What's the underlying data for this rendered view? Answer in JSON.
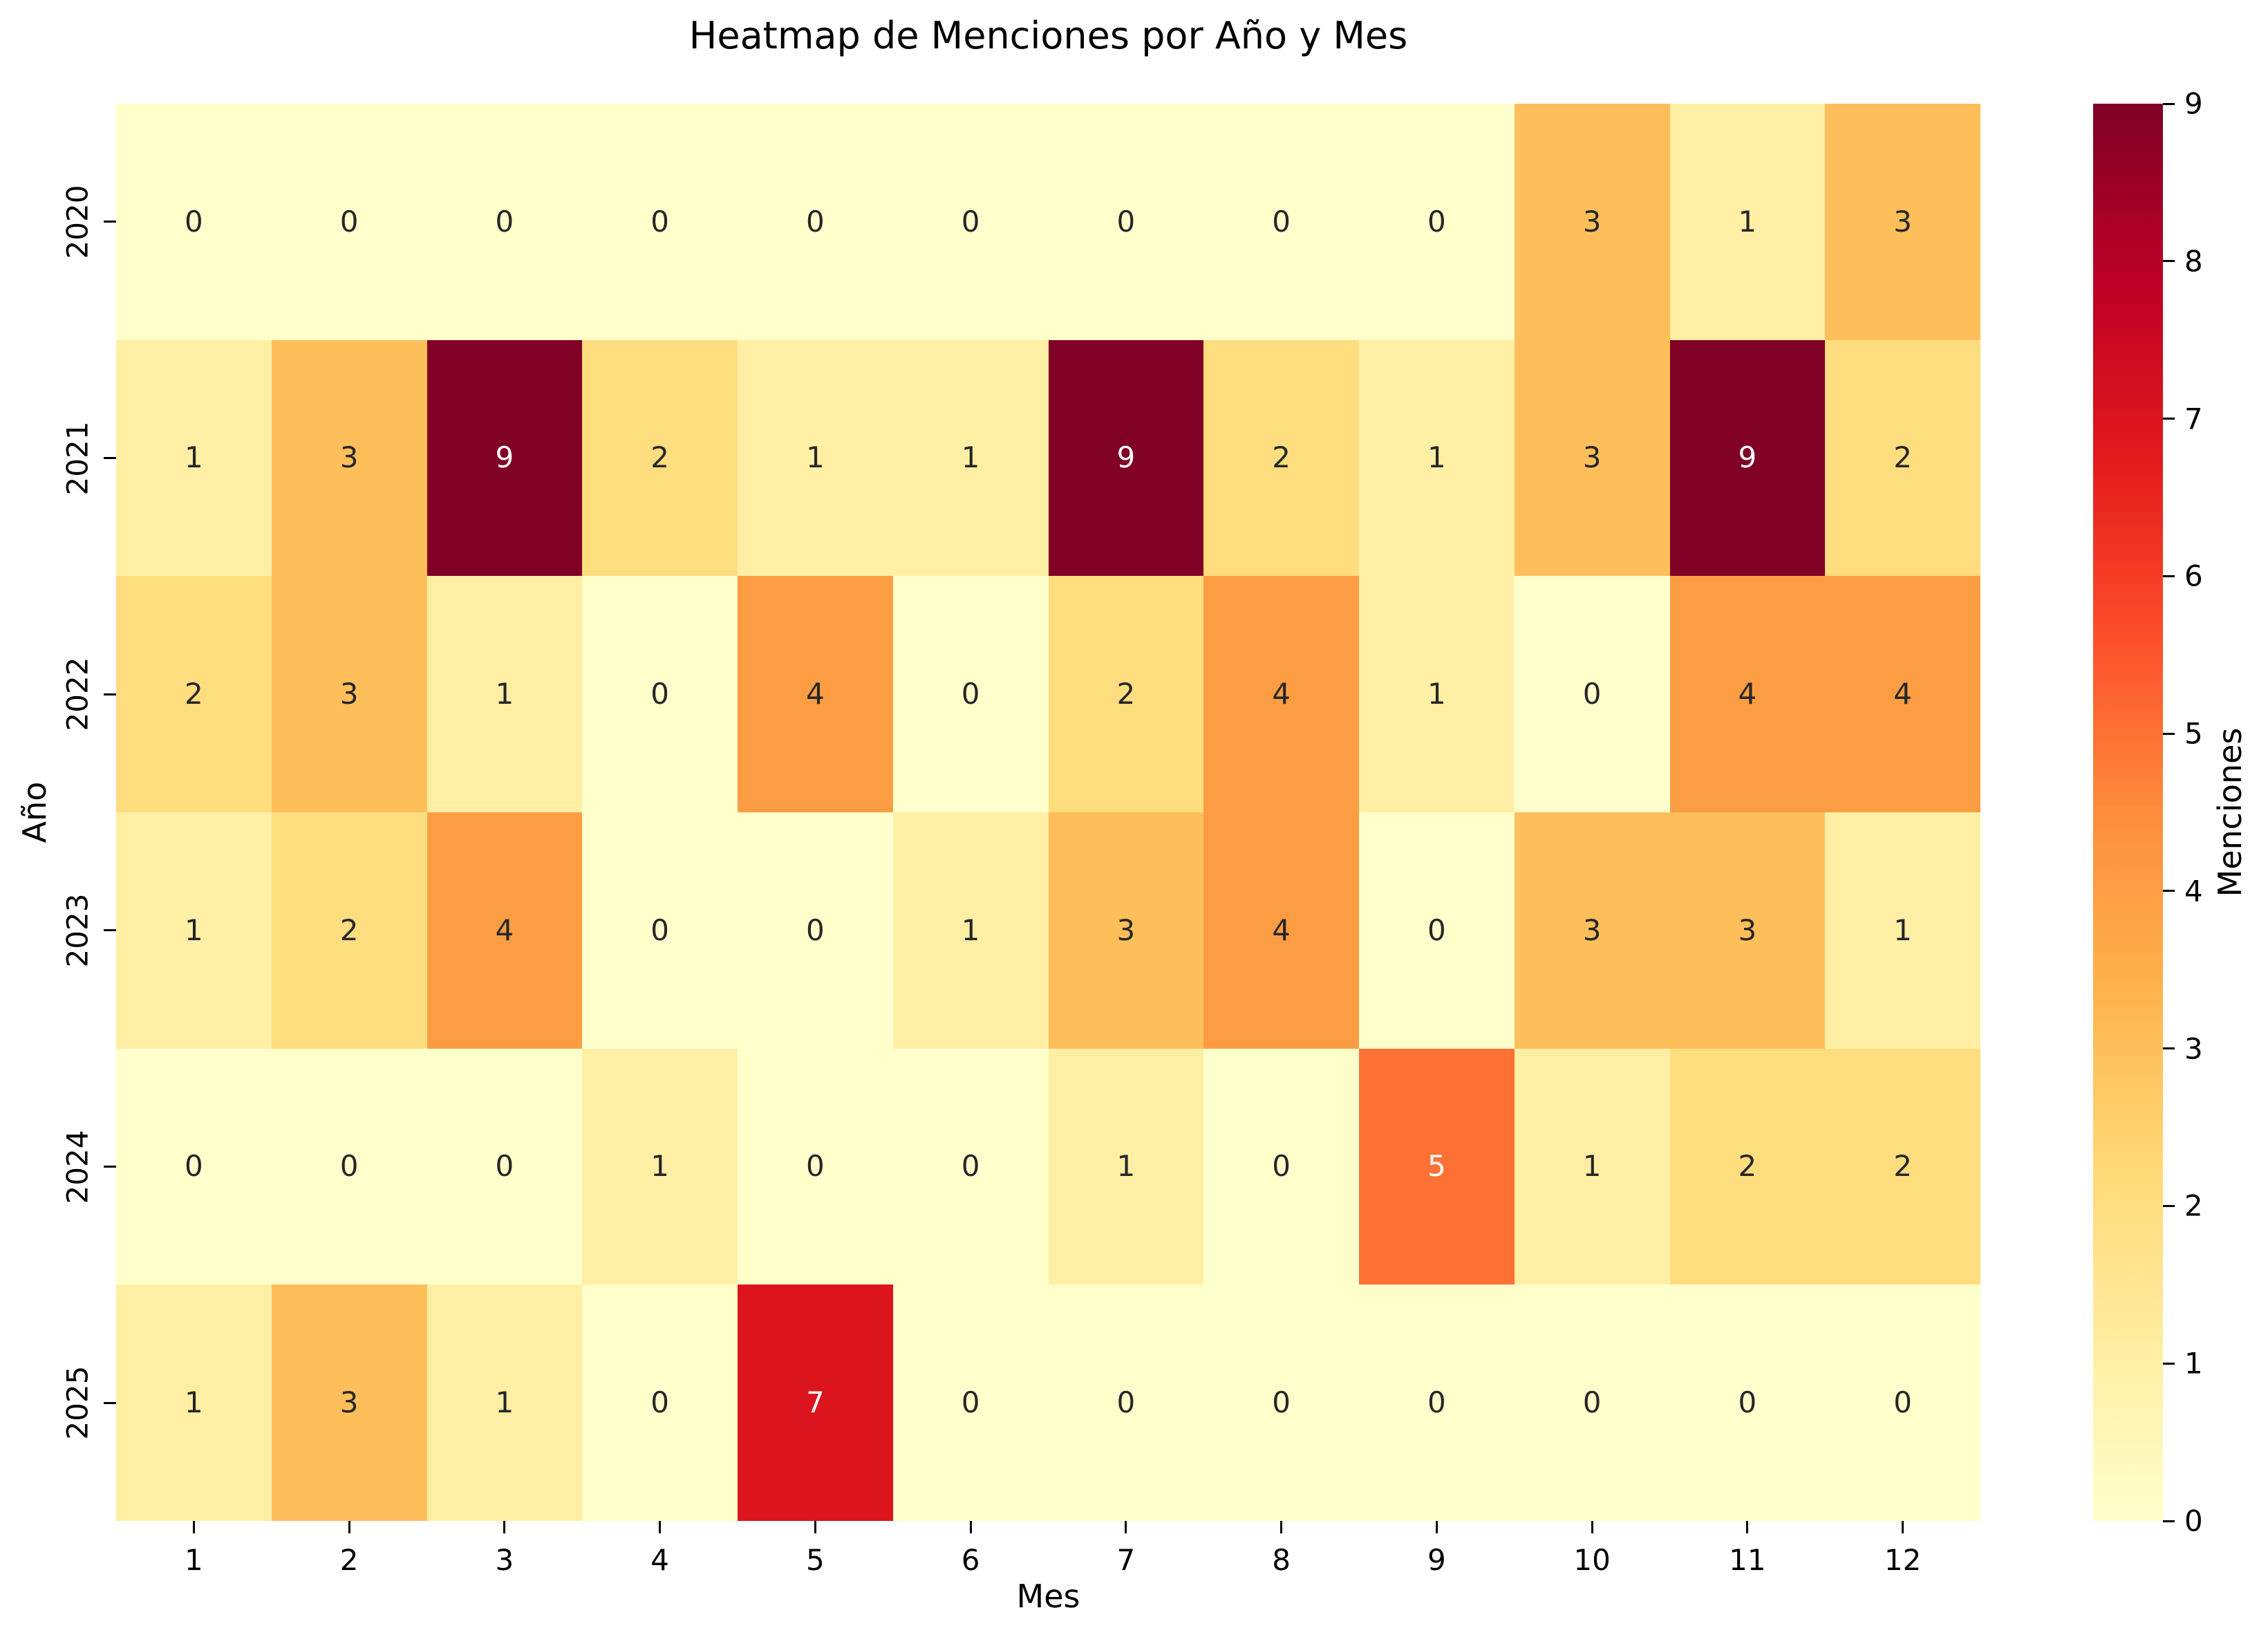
{
  "chart_data": {
    "type": "heatmap",
    "title": "Heatmap de Menciones por Año y Mes",
    "xlabel": "Mes",
    "ylabel": "Año",
    "colorbar_label": "Menciones",
    "colormap": "YlOrRd",
    "vmin": 0,
    "vmax": 9,
    "x_ticks": [
      "1",
      "2",
      "3",
      "4",
      "5",
      "6",
      "7",
      "8",
      "9",
      "10",
      "11",
      "12"
    ],
    "y_ticks": [
      "2020",
      "2021",
      "2022",
      "2023",
      "2024",
      "2025"
    ],
    "colorbar_ticks": [
      0,
      1,
      2,
      3,
      4,
      5,
      6,
      7,
      8,
      9
    ],
    "values": [
      [
        0,
        0,
        0,
        0,
        0,
        0,
        0,
        0,
        0,
        3,
        1,
        3
      ],
      [
        1,
        3,
        9,
        2,
        1,
        1,
        9,
        2,
        1,
        3,
        9,
        2
      ],
      [
        2,
        3,
        1,
        0,
        4,
        0,
        2,
        4,
        1,
        0,
        4,
        4
      ],
      [
        1,
        2,
        4,
        0,
        0,
        1,
        3,
        4,
        0,
        3,
        3,
        1
      ],
      [
        0,
        0,
        0,
        1,
        0,
        0,
        1,
        0,
        5,
        1,
        2,
        2
      ],
      [
        1,
        3,
        1,
        0,
        7,
        0,
        0,
        0,
        0,
        0,
        0,
        0
      ]
    ],
    "palette": {
      "0": "#ffffcc",
      "1": "#ffefa5",
      "2": "#fedd7f",
      "3": "#febf5a",
      "4": "#fd9d43",
      "5": "#fd7134",
      "6": "#f43d25",
      "7": "#db141e",
      "8": "#b60026",
      "9": "#800026"
    },
    "white_text_min": 5,
    "annot_dark": "#262626",
    "annot_white": "#ffffff",
    "legend_position": "right-colorbar",
    "grid": false
  }
}
